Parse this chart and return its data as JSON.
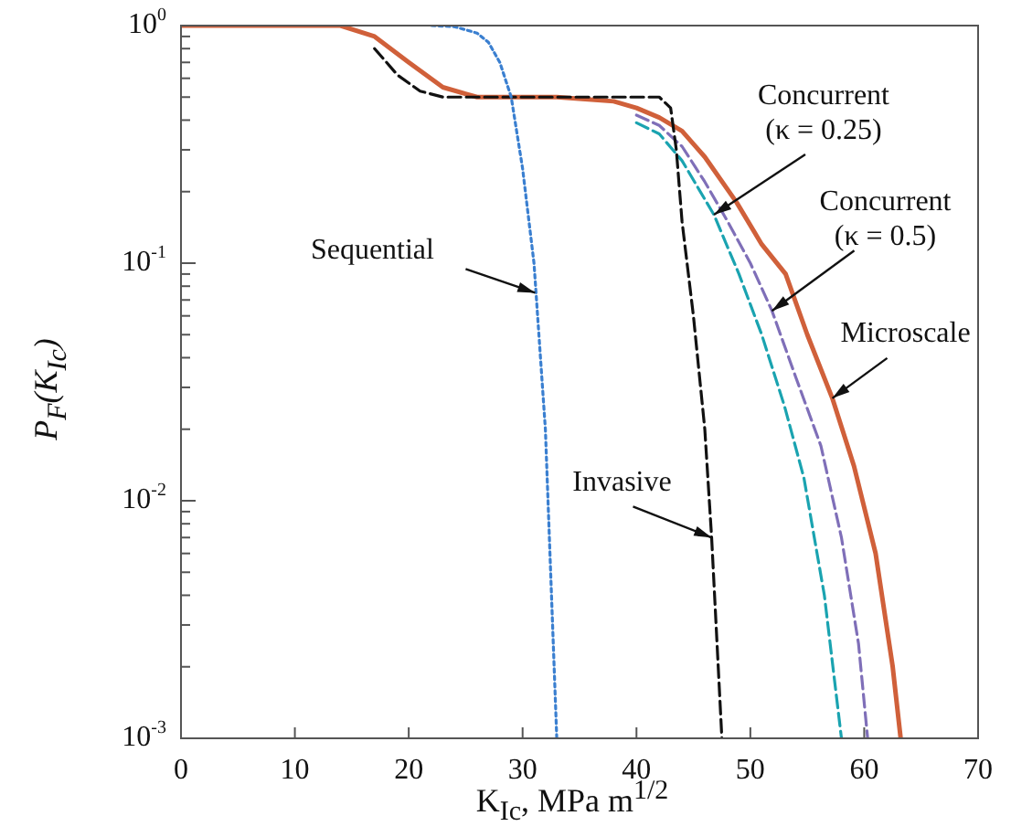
{
  "chart_data": {
    "type": "line",
    "xlabel": "K$_{Ic}$, MPa m$^{1/2}$",
    "ylabel": "P$_{F}$(K$_{Ic}$)",
    "log": "y",
    "xlim": [
      0,
      70
    ],
    "ylim": [
      0.001,
      1
    ],
    "xticks": [
      0,
      10,
      20,
      30,
      40,
      50,
      60,
      70
    ],
    "yticks": [
      {
        "value": 1,
        "label": "10$^{0}$"
      },
      {
        "value": 0.9,
        "label": null
      },
      {
        "value": 0.8,
        "label": null
      },
      {
        "value": 0.7,
        "label": null
      },
      {
        "value": 0.6,
        "label": null
      },
      {
        "value": 0.5,
        "label": null
      },
      {
        "value": 0.4,
        "label": null
      },
      {
        "value": 0.3,
        "label": null
      },
      {
        "value": 0.2,
        "label": null
      },
      {
        "value": 0.1,
        "label": "10$^{-1}$"
      },
      {
        "value": 0.09,
        "label": null
      },
      {
        "value": 0.08,
        "label": null
      },
      {
        "value": 0.07,
        "label": null
      },
      {
        "value": 0.06,
        "label": null
      },
      {
        "value": 0.05,
        "label": null
      },
      {
        "value": 0.04,
        "label": null
      },
      {
        "value": 0.03,
        "label": null
      },
      {
        "value": 0.02,
        "label": null
      },
      {
        "value": 0.01,
        "label": "10$^{-2}$"
      },
      {
        "value": 0.009,
        "label": null
      },
      {
        "value": 0.008,
        "label": null
      },
      {
        "value": 0.007,
        "label": null
      },
      {
        "value": 0.006,
        "label": null
      },
      {
        "value": 0.005,
        "label": null
      },
      {
        "value": 0.004,
        "label": null
      },
      {
        "value": 0.003,
        "label": null
      },
      {
        "value": 0.002,
        "label": null
      },
      {
        "value": 0.001,
        "label": "10$^{-3}$"
      }
    ],
    "grid": false,
    "legend": false,
    "series": [
      {
        "color": "#3a7fd0",
        "line_style": "dotted",
        "x": [
          22,
          24,
          26,
          27,
          28,
          29,
          30,
          31,
          32,
          33
        ],
        "values": [
          1,
          0.99,
          0.93,
          0.85,
          0.7,
          0.5,
          0.25,
          0.1,
          0.02,
          0.001
        ]
      },
      {
        "color": "#111111",
        "line_style": "dashed",
        "x": [
          17,
          19,
          21,
          23,
          26,
          36,
          42,
          43,
          43.5,
          44,
          45,
          46,
          46.6,
          47.5
        ],
        "values": [
          0.8,
          0.62,
          0.53,
          0.5,
          0.5,
          0.5,
          0.5,
          0.45,
          0.3,
          0.15,
          0.06,
          0.02,
          0.007,
          0.001
        ]
      },
      {
        "color": "#1aa3b0",
        "line_style": "dashed",
        "x": [
          40,
          42,
          44,
          46.8,
          49,
          51,
          53,
          54.7,
          56.5,
          58
        ],
        "values": [
          0.39,
          0.35,
          0.27,
          0.16,
          0.09,
          0.05,
          0.025,
          0.0125,
          0.004,
          0.001
        ]
      },
      {
        "color": "#7f6fb8",
        "line_style": "dashed",
        "x": [
          40,
          42,
          44,
          46,
          48,
          50,
          51.9,
          54,
          56.2,
          58,
          59.5,
          60.3
        ],
        "values": [
          0.42,
          0.38,
          0.31,
          0.22,
          0.15,
          0.1,
          0.063,
          0.033,
          0.017,
          0.007,
          0.0025,
          0.001
        ]
      },
      {
        "color": "#d0603a",
        "line_style": "solid",
        "x": [
          0,
          14,
          17,
          20,
          23,
          26,
          33,
          38,
          40,
          42,
          44,
          46,
          48.8,
          51,
          53.1,
          55,
          57.2,
          59.1,
          61,
          62.5,
          63.2
        ],
        "values": [
          1,
          1,
          0.9,
          0.7,
          0.55,
          0.5,
          0.5,
          0.48,
          0.45,
          0.41,
          0.36,
          0.28,
          0.18,
          0.12,
          0.09,
          0.05,
          0.027,
          0.014,
          0.006,
          0.002,
          0.001
        ]
      }
    ],
    "annotations": [
      {
        "text": "Sequential",
        "x": 31.1,
        "y": 0.075
      },
      {
        "text": "Invasive",
        "x": 46.6,
        "y": 0.007
      },
      {
        "text": "Concurrent (κ = 0.25)",
        "x": 46.8,
        "y": 0.16
      },
      {
        "text": "Concurrent (κ = 0.5)",
        "x": 51.9,
        "y": 0.063
      },
      {
        "text": "Microscale",
        "x": 57.2,
        "y": 0.027
      }
    ]
  }
}
